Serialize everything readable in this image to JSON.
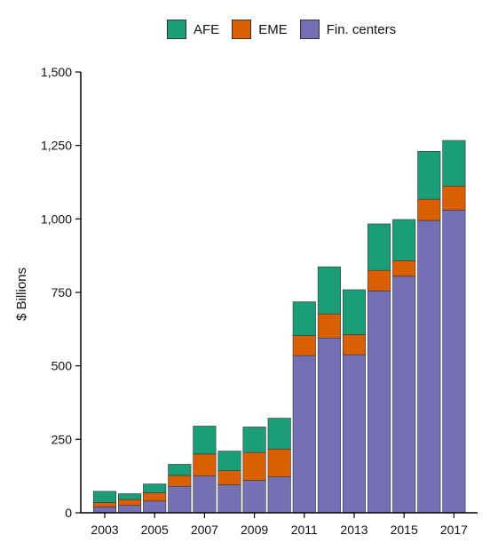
{
  "chart_data": {
    "type": "bar",
    "stacked": true,
    "categories": [
      "2003",
      "2004",
      "2005",
      "2006",
      "2007",
      "2008",
      "2009",
      "2010",
      "2011",
      "2012",
      "2013",
      "2014",
      "2015",
      "2016",
      "2017"
    ],
    "x_tick_labels": [
      "2003",
      "2005",
      "2007",
      "2009",
      "2011",
      "2013",
      "2015",
      "2017"
    ],
    "series": [
      {
        "name": "Fin. centers",
        "color": "#7570b3",
        "values": [
          20,
          25,
          40,
          90,
          125,
          95,
          110,
          122,
          535,
          595,
          538,
          755,
          805,
          995,
          1030
        ]
      },
      {
        "name": "EME",
        "color": "#d95f02",
        "values": [
          15,
          20,
          28,
          37,
          75,
          48,
          95,
          95,
          68,
          82,
          68,
          70,
          53,
          72,
          82
        ]
      },
      {
        "name": "AFE",
        "color": "#1b9e77",
        "values": [
          38,
          20,
          30,
          38,
          95,
          67,
          87,
          105,
          115,
          160,
          153,
          158,
          140,
          163,
          155
        ]
      }
    ],
    "legend_order": [
      "AFE",
      "EME",
      "Fin. centers"
    ],
    "legend_position": "top",
    "ylabel": "$ Billions",
    "xlabel": "",
    "ylim": [
      0,
      1500
    ],
    "y_ticks": [
      0,
      250,
      500,
      750,
      1000,
      1250,
      1500
    ],
    "y_tick_labels": [
      "0",
      "250",
      "500",
      "750",
      "1,000",
      "1,250",
      "1,500"
    ],
    "grid": false
  }
}
